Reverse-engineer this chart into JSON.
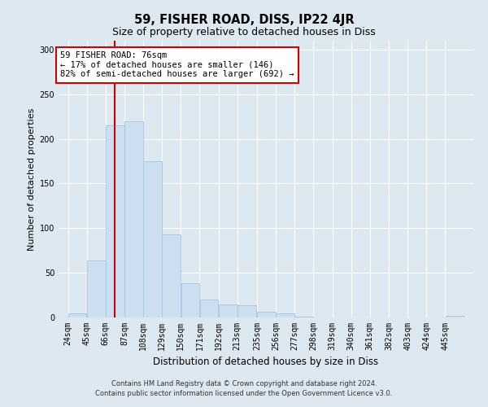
{
  "title": "59, FISHER ROAD, DISS, IP22 4JR",
  "subtitle": "Size of property relative to detached houses in Diss",
  "xlabel": "Distribution of detached houses by size in Diss",
  "ylabel": "Number of detached properties",
  "footer1": "Contains HM Land Registry data © Crown copyright and database right 2024.",
  "footer2": "Contains public sector information licensed under the Open Government Licence v3.0.",
  "bar_labels": [
    "24sqm",
    "45sqm",
    "66sqm",
    "87sqm",
    "108sqm",
    "129sqm",
    "150sqm",
    "171sqm",
    "192sqm",
    "213sqm",
    "235sqm",
    "256sqm",
    "277sqm",
    "298sqm",
    "319sqm",
    "340sqm",
    "361sqm",
    "382sqm",
    "403sqm",
    "424sqm",
    "445sqm"
  ],
  "bar_values": [
    5,
    64,
    215,
    220,
    175,
    93,
    38,
    20,
    15,
    14,
    6,
    5,
    1,
    0,
    0,
    0,
    0,
    0,
    0,
    0,
    2
  ],
  "bar_color": "#ccdff0",
  "bar_edgecolor": "#aac4e0",
  "vline_x_index": 2,
  "vline_color": "#cc0000",
  "annotation_line1": "59 FISHER ROAD: 76sqm",
  "annotation_line2": "← 17% of detached houses are smaller (146)",
  "annotation_line3": "82% of semi-detached houses are larger (692) →",
  "annotation_box_edgecolor": "#cc0000",
  "annotation_fontsize": 7.5,
  "ylim": [
    0,
    310
  ],
  "yticks": [
    0,
    50,
    100,
    150,
    200,
    250,
    300
  ],
  "bg_color": "#dde8f0",
  "plot_bg_color": "#dde8f0",
  "grid_color": "#ffffff",
  "title_fontsize": 10.5,
  "subtitle_fontsize": 9,
  "xlabel_fontsize": 8.5,
  "ylabel_fontsize": 8,
  "tick_fontsize": 7,
  "bin_width": 21,
  "footer_fontsize": 6
}
